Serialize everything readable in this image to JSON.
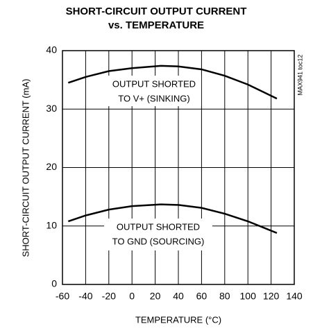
{
  "chart_data": {
    "type": "line",
    "title": "SHORT-CIRCUIT OUTPUT CURRENT",
    "subtitle": "vs. TEMPERATURE",
    "xlabel": "TEMPERATURE (°C)",
    "ylabel": "SHORT-CIRCUIT OUTPUT CURRENT (mA)",
    "watermark": "MAX941 toc12",
    "x": [
      -55,
      -40,
      -20,
      0,
      25,
      40,
      60,
      80,
      100,
      125
    ],
    "series": [
      {
        "color": "#000000",
        "values": [
          34.5,
          35.5,
          36.5,
          37.0,
          37.4,
          37.3,
          36.8,
          35.7,
          34.2,
          31.8
        ]
      },
      {
        "color": "#000000",
        "values": [
          10.8,
          11.8,
          12.8,
          13.4,
          13.7,
          13.6,
          13.1,
          12.1,
          10.8,
          8.8
        ]
      }
    ],
    "annotations": [
      [
        "OUTPUT SHORTED",
        "TO V+ (SINKING)"
      ],
      [
        "OUTPUT SHORTED",
        "TO GND (SOURCING)"
      ]
    ],
    "xlim": [
      -60,
      140
    ],
    "xticks": [
      -60,
      -40,
      -20,
      0,
      20,
      40,
      60,
      80,
      100,
      120,
      140
    ],
    "ylim": [
      0,
      40
    ],
    "yticks": [
      0,
      10,
      20,
      30,
      40
    ],
    "grid": true
  }
}
